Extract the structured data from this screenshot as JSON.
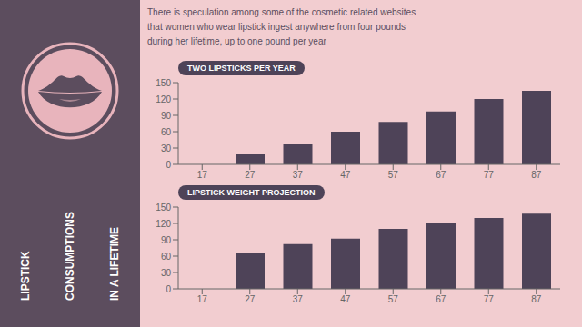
{
  "title": [
    "LIPSTICK",
    "CONSUMPTIONS",
    "IN A LIFETIME"
  ],
  "subtitle": "There is speculation among some of the cosmetic related websites\nthat women who wear lipstick ingest anywhere from four pounds\nduring her lifetime, up to one pound per year",
  "chart_data": [
    {
      "type": "bar",
      "title": "TWO LIPSTICKS PER YEAR",
      "categories": [
        17,
        27,
        37,
        47,
        57,
        67,
        77,
        87
      ],
      "values": [
        0,
        20,
        38,
        60,
        78,
        97,
        120,
        135
      ],
      "color": "#4e4358",
      "ylim": [
        0,
        150
      ],
      "yticks": [
        0,
        30,
        60,
        90,
        120,
        150
      ],
      "grid": false
    },
    {
      "type": "bar",
      "title": "LIPSTICK WEIGHT PROJECTION",
      "categories": [
        17,
        27,
        37,
        47,
        57,
        67,
        77,
        87
      ],
      "values": [
        0,
        65,
        82,
        92,
        110,
        120,
        130,
        138
      ],
      "color": "#4e4358",
      "ylim": [
        0,
        150
      ],
      "yticks": [
        0,
        30,
        60,
        90,
        120,
        150
      ],
      "grid": false
    }
  ]
}
